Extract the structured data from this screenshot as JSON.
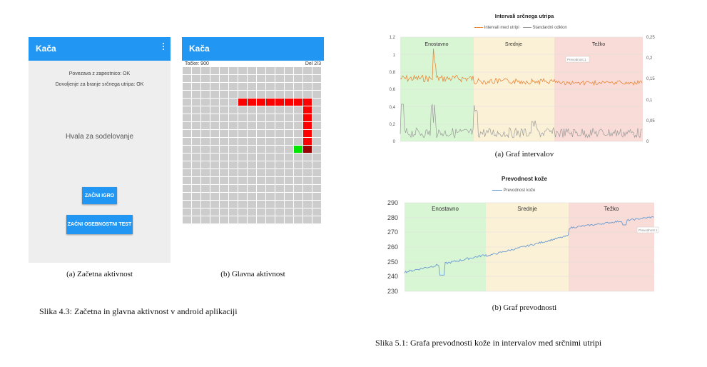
{
  "screen_a": {
    "title": "Kača",
    "status1": "Povezava z zapestnico: OK",
    "status2": "Dovoljenje za branje srčnega utripa: OK",
    "thanks": "Hvala za sodelovanje",
    "btn_game": "ZAČNI IGRO",
    "btn_test": "ZAČNI OSEBNOSTNI TEST",
    "caption": "(a) Začetna aktivnost"
  },
  "screen_b": {
    "title": "Kača",
    "score": "Točke: 900",
    "part": "Del 2/3",
    "caption": "(b) Glavna aktivnost",
    "grid": {
      "cols": 15,
      "rows": 20,
      "snake": [
        [
          6,
          4
        ],
        [
          7,
          4
        ],
        [
          8,
          4
        ],
        [
          9,
          4
        ],
        [
          10,
          4
        ],
        [
          11,
          4
        ],
        [
          12,
          4
        ],
        [
          13,
          4
        ],
        [
          13,
          5
        ],
        [
          13,
          6
        ],
        [
          13,
          7
        ],
        [
          13,
          8
        ],
        [
          13,
          9
        ]
      ],
      "head": [
        13,
        10
      ],
      "food": [
        12,
        10
      ]
    }
  },
  "figure_43_caption": "Slika 4.3: Začetna in glavna aktivnost v android aplikaciji",
  "figure_51_caption": "Slika 5.1: Grafa prevodnosti kože in intervalov med srčnimi utripi",
  "colors": {
    "appbar": "#2196f3",
    "green_zone": "#d9f6d4",
    "yellow_zone": "#fbf1d7",
    "red_zone": "#f9dcd7",
    "interval_line": "#e8873a",
    "sd_line": "#999999",
    "conductance_line": "#6a9bd1"
  },
  "chart_data": [
    {
      "type": "line",
      "title": "Intervali srčnega utripa",
      "series": [
        {
          "name": "Intervali med utripi"
        },
        {
          "name": "Standardni odklon"
        }
      ],
      "left_axis": {
        "ticks": [
          "1,2",
          "1",
          "0,8",
          "0,6",
          "0,4",
          "0,2",
          "0"
        ],
        "ylim": [
          0,
          1.2
        ]
      },
      "right_axis": {
        "ticks": [
          "0,25",
          "0,2",
          "0,15",
          "0,1",
          "0,05",
          "0"
        ],
        "ylim": [
          0,
          0.25
        ]
      },
      "zones": [
        "Enostavno",
        "Srednje",
        "Težko"
      ],
      "tooltip": "Prevodnost 1",
      "caption": "(a) Graf intervalov"
    },
    {
      "type": "line",
      "title": "Prevodnost kože",
      "series": [
        {
          "name": "Prevodnost kože"
        }
      ],
      "y_axis": {
        "ticks": [
          "290",
          "280",
          "270",
          "260",
          "250",
          "240",
          "230"
        ],
        "ylim": [
          230,
          290
        ]
      },
      "zones": [
        "Enostavno",
        "Srednje",
        "Težko"
      ],
      "tooltip": "Prevodnost 1",
      "caption": "(b) Graf prevodnosti"
    }
  ]
}
